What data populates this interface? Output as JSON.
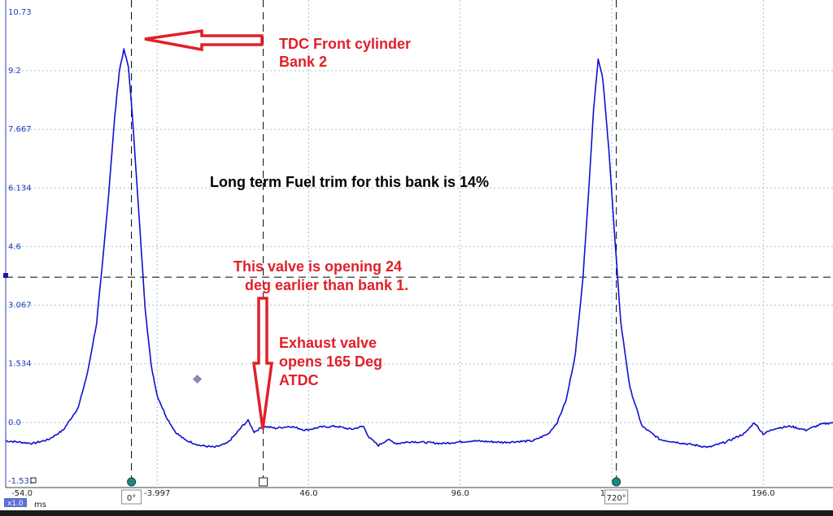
{
  "chart_data": {
    "type": "line",
    "title": "",
    "xlabel": "ms",
    "ylabel": "",
    "xlim": [
      -54.0,
      219.0
    ],
    "ylim": [
      -1.533,
      10.73
    ],
    "y_ticks": [
      "10.73",
      "9.2",
      "7.667",
      "6.134",
      "4.6",
      "3.067",
      "1.534",
      "0.0",
      "-1.533"
    ],
    "x_ticks": [
      "-54.0",
      "-3.997",
      "46.0",
      "96.0",
      "146.0",
      "196.0"
    ],
    "zoom_badge": "x1.0",
    "grid": true,
    "series": [
      {
        "color": "#1010d0",
        "x": [
          -54.0,
          -45.0,
          -40.0,
          -35.0,
          -30.0,
          -27.0,
          -24.0,
          -22.0,
          -20.0,
          -18.0,
          -16.5,
          -15.0,
          -13.5,
          -12.0,
          -10.0,
          -8.0,
          -6.0,
          -4.0,
          -1.0,
          2.0,
          5.0,
          10.0,
          15.0,
          19.0,
          22.0,
          24.0,
          26.0,
          28.0,
          31.0,
          35.0,
          40.0,
          45.0,
          50.0,
          55.0,
          60.0,
          64.0,
          66.0,
          69.0,
          72.0,
          75.0,
          80.0,
          90.0,
          100.0,
          110.0,
          120.0,
          125.0,
          128.0,
          131.0,
          134.0,
          136.5,
          138.5,
          140.0,
          141.5,
          143.0,
          145.0,
          147.0,
          149.0,
          152.0,
          156.0,
          162.0,
          170.0,
          178.0,
          184.0,
          190.0,
          193.0,
          196.0,
          200.0,
          205.0,
          210.0,
          215.0,
          219.0
        ],
        "values": [
          -0.48,
          -0.55,
          -0.45,
          -0.2,
          0.4,
          1.3,
          2.6,
          4.2,
          6.0,
          8.0,
          9.2,
          9.75,
          9.3,
          7.8,
          5.4,
          3.0,
          1.5,
          0.7,
          0.15,
          -0.25,
          -0.45,
          -0.6,
          -0.65,
          -0.55,
          -0.3,
          -0.1,
          0.05,
          -0.25,
          -0.1,
          -0.15,
          -0.1,
          -0.2,
          -0.12,
          -0.1,
          -0.18,
          -0.1,
          -0.4,
          -0.6,
          -0.45,
          -0.55,
          -0.5,
          -0.55,
          -0.48,
          -0.52,
          -0.48,
          -0.3,
          0.0,
          0.6,
          1.8,
          3.8,
          6.2,
          8.2,
          9.5,
          9.0,
          7.2,
          4.8,
          2.6,
          0.9,
          -0.1,
          -0.45,
          -0.55,
          -0.65,
          -0.5,
          -0.28,
          0.0,
          -0.3,
          -0.15,
          -0.1,
          -0.2,
          -0.05,
          0.0
        ]
      }
    ],
    "rulers": {
      "vertical": [
        {
          "x": -12.5,
          "label": "0°"
        },
        {
          "x": 31.0,
          "label": ""
        },
        {
          "x": 147.5,
          "label": "720°"
        }
      ],
      "horizontal_y": 3.8
    },
    "annotations": {
      "tdc_line1": "TDC Front cylinder",
      "tdc_line2": "Bank 2",
      "fuel_trim": "Long term Fuel trim for this bank is 14%",
      "valve_early_line1": "This valve is opening 24",
      "valve_early_line2": "deg earlier than bank 1.",
      "exhaust_line1": "Exhaust valve",
      "exhaust_line2": "opens 165 Deg",
      "exhaust_line3": "ATDC"
    }
  }
}
